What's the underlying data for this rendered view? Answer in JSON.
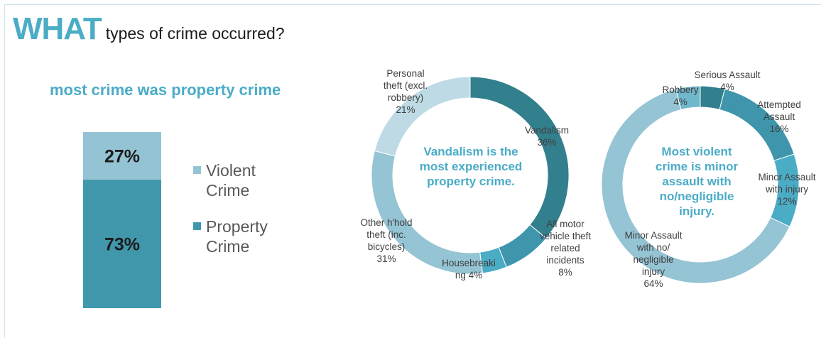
{
  "title": {
    "big": "WHAT",
    "rest": "types of crime  occurred?"
  },
  "colors": {
    "accent": "#4bacc6",
    "property": "#4197ac",
    "violent": "#94c3d3",
    "dark": "#327f8e"
  },
  "chart_data": [
    {
      "type": "bar",
      "subtype": "100% stacked",
      "title": "most crime was property crime",
      "series": [
        {
          "name": "Property Crime",
          "values": [
            73
          ],
          "label": "73%",
          "color": "#4197ac"
        },
        {
          "name": "Violent Crime",
          "values": [
            27
          ],
          "label": "27%",
          "color": "#94c3d3"
        }
      ],
      "legend": {
        "placement": "right",
        "entries": [
          "Violent Crime",
          "Property Crime"
        ]
      }
    },
    {
      "type": "pie",
      "subtype": "donut",
      "center_text": [
        "Vandalism  is the",
        "most experienced",
        "property crime."
      ],
      "slices": [
        {
          "label": [
            "Vandalism",
            "36%"
          ],
          "value": 36,
          "color": "#327f8e"
        },
        {
          "label": [
            "All motor",
            "vehicle theft",
            "related",
            "incidents",
            "8%"
          ],
          "value": 8,
          "color": "#3f96ac"
        },
        {
          "label": [
            "Housebreaki",
            "ng 4%"
          ],
          "value": 4,
          "color": "#4bacc6"
        },
        {
          "label": [
            "Other h'hold",
            "theft (inc.",
            "bicycles)",
            "31%"
          ],
          "value": 31,
          "color": "#95c4d4"
        },
        {
          "label": [
            "Personal",
            "theft (excl.",
            "robbery)",
            "21%"
          ],
          "value": 21,
          "color": "#bedbe5"
        }
      ]
    },
    {
      "type": "pie",
      "subtype": "donut",
      "center_text": [
        "Most violent",
        "crime is minor",
        "assault with",
        "no/negligible",
        "injury."
      ],
      "slices": [
        {
          "label": [
            "Serious Assault",
            "4%"
          ],
          "value": 4,
          "color": "#327f8e"
        },
        {
          "label": [
            "Attempted",
            "Assault",
            "16%"
          ],
          "value": 16,
          "color": "#3f96ac"
        },
        {
          "label": [
            "Minor Assault",
            "with injury",
            "12%"
          ],
          "value": 12,
          "color": "#4bacc6"
        },
        {
          "label": [
            "Minor Assault",
            "with no/",
            "negligible",
            "injury",
            "64%"
          ],
          "value": 64,
          "color": "#95c4d4"
        },
        {
          "label": [
            "Robbery",
            "4%"
          ],
          "value": 4,
          "color": "#6fb7ca"
        }
      ]
    }
  ]
}
